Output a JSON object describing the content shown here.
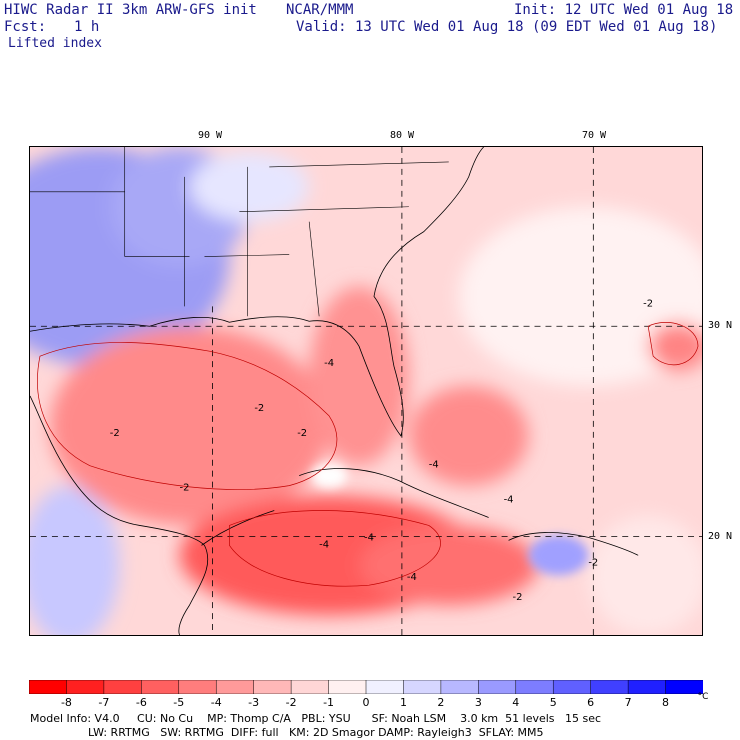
{
  "header": {
    "title_left": "HIWC Radar II 3km ARW-GFS init",
    "org": "NCAR/MMM",
    "init": "Init: 12 UTC Wed 01 Aug 18",
    "fcst_label": "Fcst:",
    "fcst_value": "1 h",
    "valid": "Valid: 13 UTC Wed 01 Aug 18 (09 EDT Wed 01 Aug 18)",
    "field": "Lifted index"
  },
  "map": {
    "lon_labels": [
      "90 W",
      "80 W",
      "70 W"
    ],
    "lat_labels": [
      "30 N",
      "20 N"
    ],
    "contour_labels": [
      "-2",
      "-2",
      "-2",
      "-2",
      "-4",
      "-4",
      "-4",
      "-4",
      "-4",
      "-2",
      "-4",
      "-2",
      "-2"
    ]
  },
  "colorbar": {
    "ticks": [
      "-8",
      "-7",
      "-6",
      "-5",
      "-4",
      "-3",
      "-2",
      "-1",
      "0",
      "1",
      "2",
      "3",
      "4",
      "5",
      "6",
      "7",
      "8"
    ],
    "unit": "°C",
    "colors": [
      "#ff0000",
      "#ff2020",
      "#ff4040",
      "#ff6060",
      "#ff7d7d",
      "#ff9a9a",
      "#ffb8b8",
      "#ffd6d6",
      "#fff0f0",
      "#f0f0ff",
      "#d6d6ff",
      "#b8b8ff",
      "#9a9aff",
      "#7d7dff",
      "#6060ff",
      "#4040ff",
      "#2020ff",
      "#0000ff"
    ]
  },
  "footer": {
    "line1": "Model Info: V4.0     CU: No Cu    MP: Thomp C/A   PBL: YSU      SF: Noah LSM    3.0 km  51 levels   15 sec",
    "line2": "LW: RRTMG   SW: RRTMG  DIFF: full   KM: 2D Smagor DAMP: Rayleigh3  SFLAY: MM5"
  }
}
